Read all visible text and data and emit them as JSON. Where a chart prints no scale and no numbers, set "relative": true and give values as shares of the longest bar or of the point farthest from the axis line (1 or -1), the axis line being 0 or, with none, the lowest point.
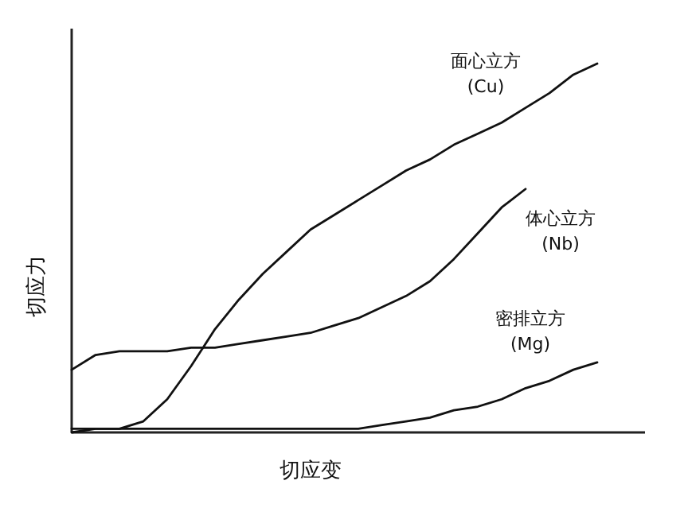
{
  "chart_data": {
    "type": "line",
    "relative": true,
    "xlabel": "切应变",
    "ylabel": "切应力",
    "line_style": "solid",
    "categories": [
      null,
      null,
      null,
      null,
      null,
      null,
      null,
      null,
      null,
      null,
      null,
      null,
      null,
      null,
      null,
      null,
      null,
      null,
      null,
      null,
      null,
      null,
      null
    ],
    "series": [
      {
        "name": "面心立方 (Cu)",
        "color": "#111111",
        "values": [
          0.0,
          0.01,
          0.01,
          0.03,
          0.09,
          0.18,
          0.28,
          0.36,
          0.43,
          0.49,
          0.55,
          0.59,
          0.63,
          0.67,
          0.71,
          0.74,
          0.78,
          0.81,
          0.84,
          0.88,
          0.92,
          0.97,
          1.0
        ]
      },
      {
        "name": "体心立方 (Nb)",
        "color": "#111111",
        "values": [
          0.17,
          0.21,
          0.22,
          0.22,
          0.22,
          0.23,
          0.23,
          0.24,
          0.25,
          0.26,
          0.27,
          0.29,
          0.31,
          0.34,
          0.37,
          0.41,
          0.47,
          0.54,
          0.61,
          0.66,
          null,
          null,
          null
        ]
      },
      {
        "name": "密排立方 (Mg)",
        "color": "#111111",
        "values": [
          0.01,
          0.01,
          0.01,
          0.01,
          0.01,
          0.01,
          0.01,
          0.01,
          0.01,
          0.01,
          0.01,
          0.01,
          0.01,
          0.02,
          0.03,
          0.04,
          0.06,
          0.07,
          0.09,
          0.12,
          0.14,
          0.17,
          0.19
        ]
      }
    ]
  }
}
